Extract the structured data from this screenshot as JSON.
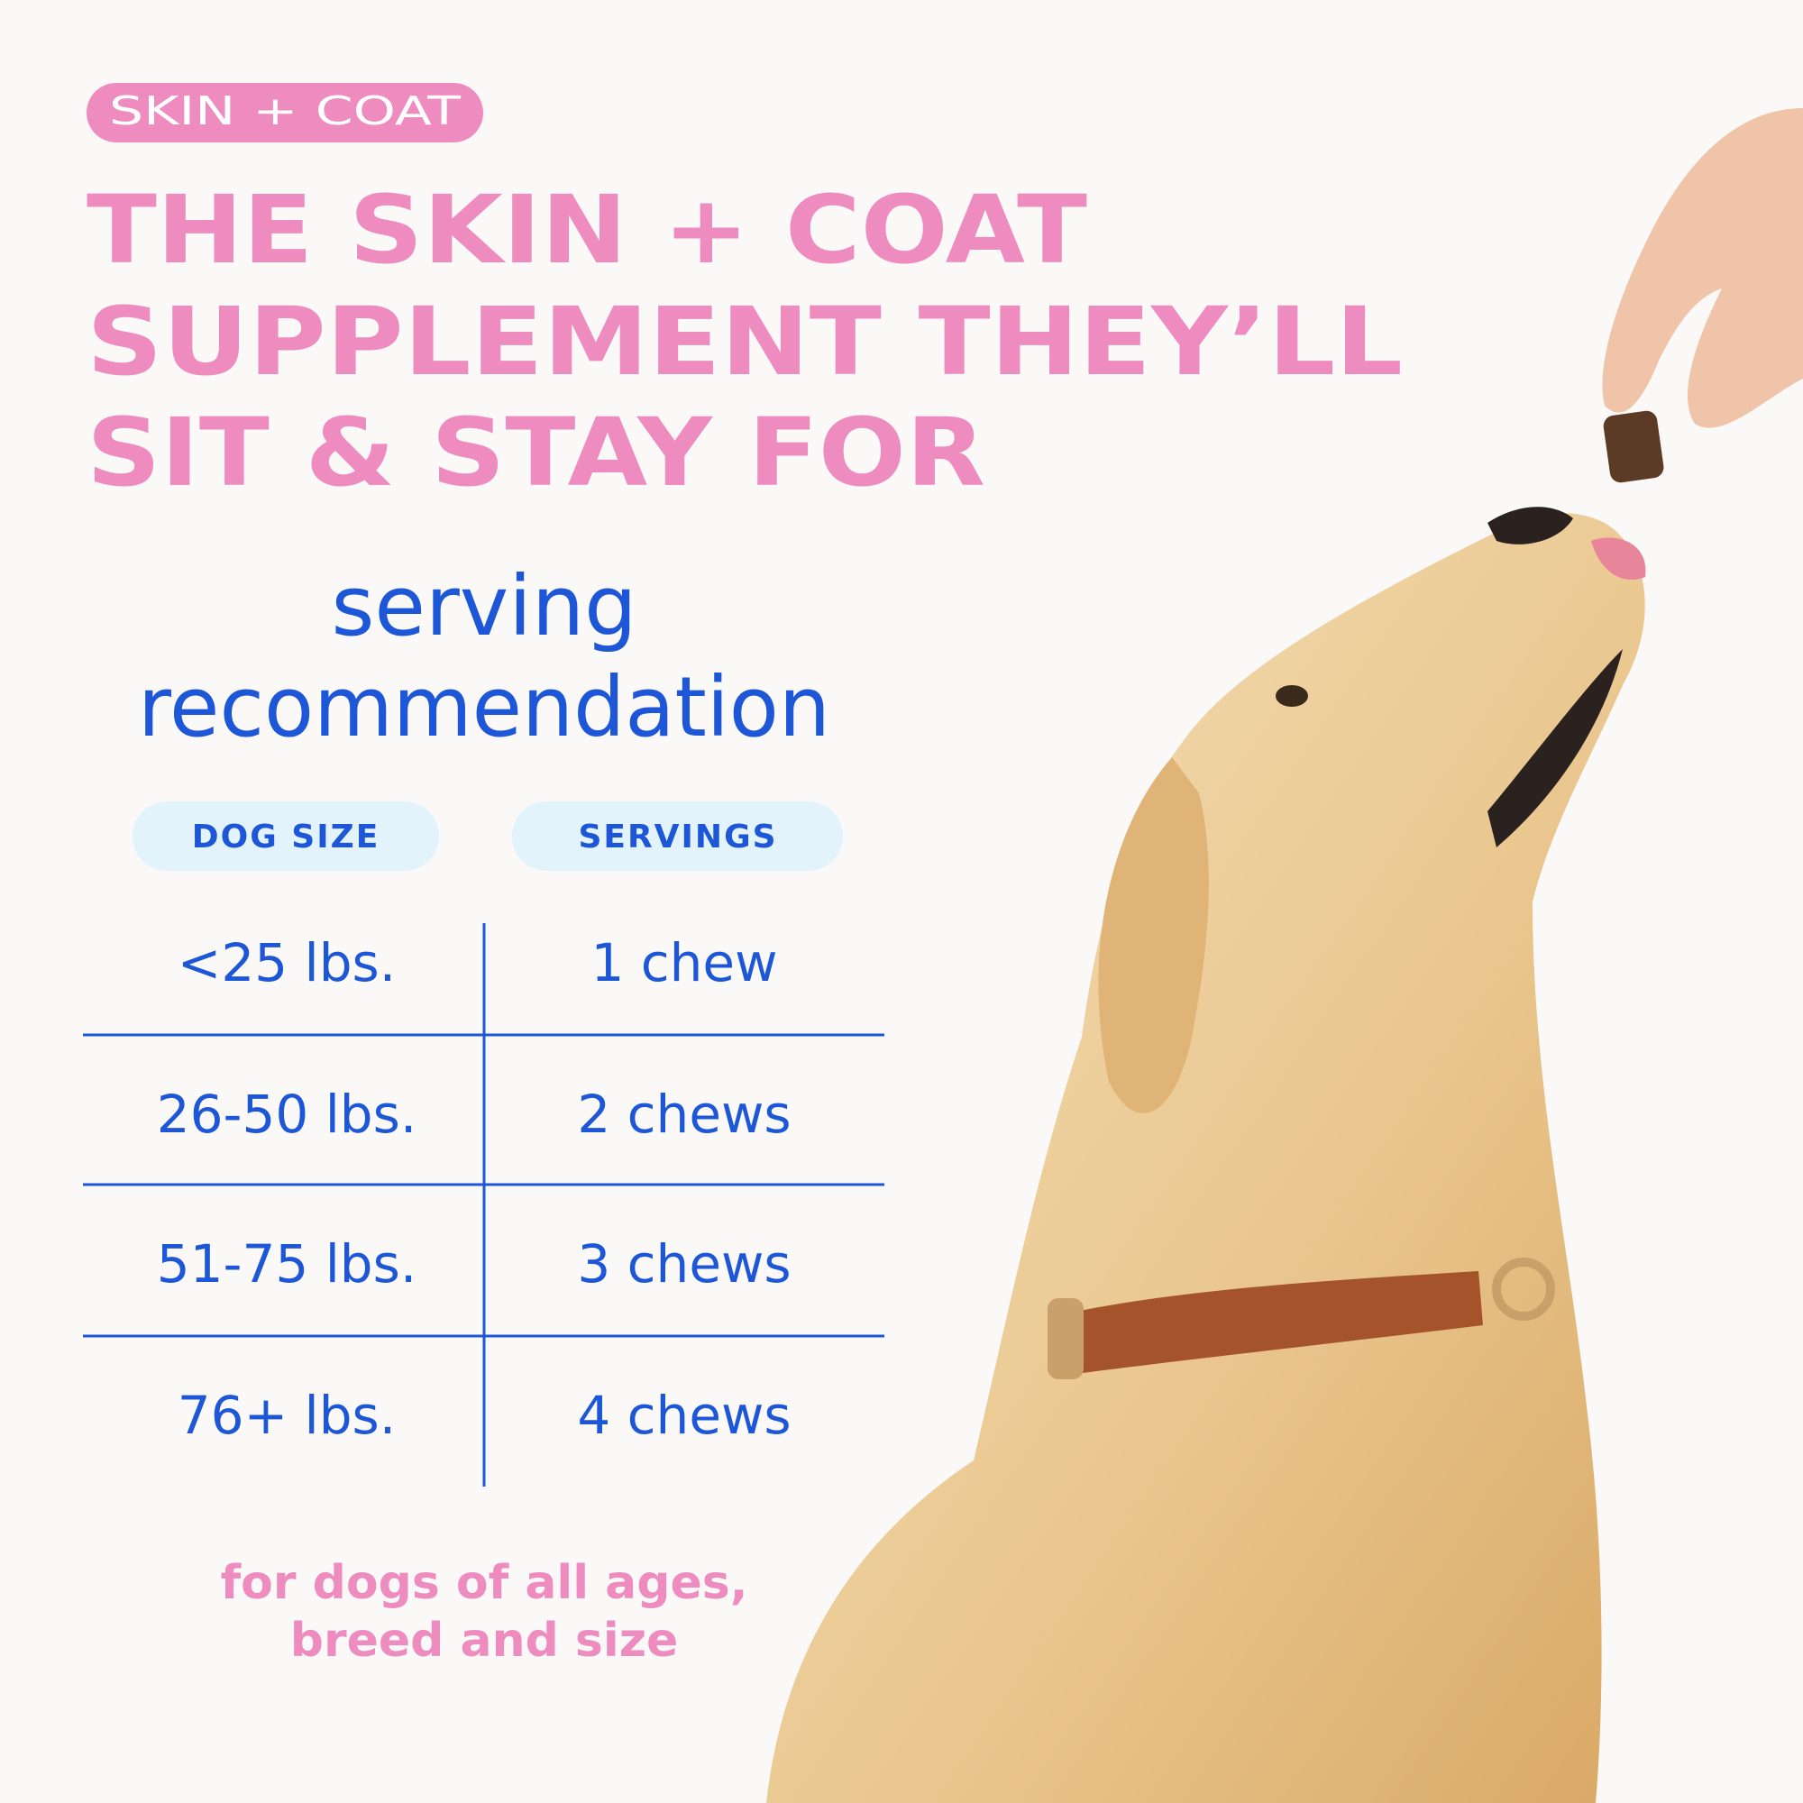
{
  "badge": "SKIN + COAT",
  "headline": [
    "THE SKIN + COAT",
    "SUPPLEMENT THEY’LL",
    "SIT & STAY FOR"
  ],
  "subtitle": [
    "serving",
    "recommendation"
  ],
  "table": {
    "headers": [
      "DOG SIZE",
      "SERVINGS"
    ],
    "rows": [
      [
        "<25 lbs.",
        "1 chew"
      ],
      [
        "26-50 lbs.",
        "2 chews"
      ],
      [
        "51-75 lbs.",
        "3 chews"
      ],
      [
        "76+ lbs.",
        "4 chews"
      ]
    ]
  },
  "footer": [
    "for dogs of all ages,",
    "breed and size"
  ]
}
